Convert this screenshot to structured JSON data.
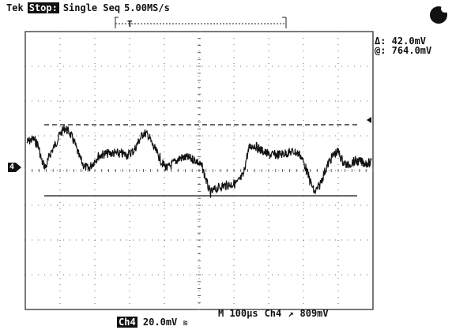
{
  "header": {
    "brand": "Tek",
    "state": "Stop:",
    "acq_mode": "Single Seq",
    "sample_rate": "5.00MS/s"
  },
  "cursor": {
    "delta": "Δ: 42.0mV",
    "at": "@: 764.0mV"
  },
  "channel": {
    "marker": "4",
    "label": "Ch4",
    "scale": "20.0mV",
    "bw_icon": "bandwidth-limit-icon"
  },
  "timebase": {
    "label": "M 100µs",
    "trigger_source": "Ch4",
    "trigger_slope_icon": "rising-edge-icon",
    "trigger_level": "809mV"
  },
  "icons": {
    "run_indicator": "acquisition-stopped-icon",
    "trigger_level_marker": "arrow-left-icon"
  },
  "colors": {
    "trace": "#111111",
    "background": "#ffffff",
    "grid": "#444444"
  }
}
